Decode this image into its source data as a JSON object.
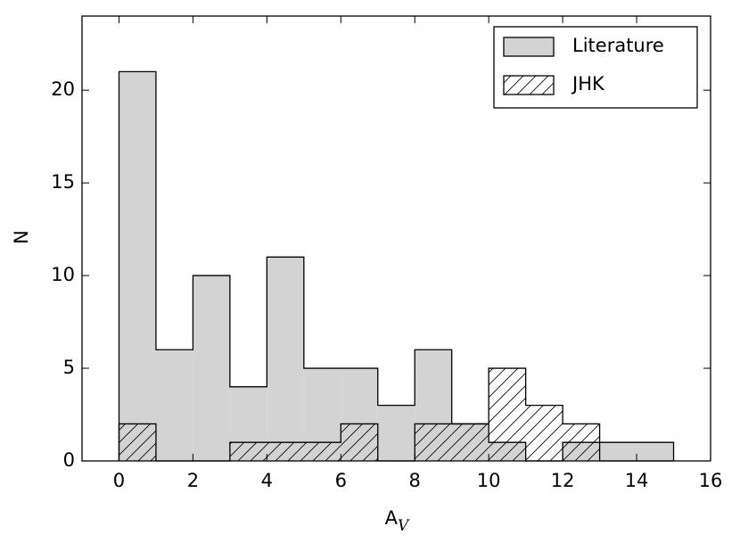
{
  "chart_data": {
    "type": "histogram",
    "xlabel": "A",
    "xlabel_sub": "V",
    "ylabel": "N",
    "bins": [
      0,
      1,
      2,
      3,
      4,
      5,
      6,
      7,
      8,
      9,
      10,
      11,
      12,
      13,
      14,
      15
    ],
    "series": [
      {
        "name": "Literature",
        "color": "#d3d3d3",
        "values": [
          21,
          6,
          10,
          4,
          11,
          5,
          5,
          3,
          6,
          2,
          1,
          0,
          1,
          1,
          1
        ]
      },
      {
        "name": "JHK",
        "color": "hatch",
        "values": [
          2,
          0,
          0,
          1,
          1,
          1,
          2,
          0,
          2,
          2,
          5,
          3,
          2,
          0,
          0
        ]
      }
    ],
    "xlim": [
      -1,
      16
    ],
    "xticks": [
      0,
      2,
      4,
      6,
      8,
      10,
      12,
      14,
      16
    ],
    "ylim": [
      0,
      24
    ],
    "yticks": [
      0,
      5,
      10,
      15,
      20
    ],
    "legend": "upper right"
  }
}
